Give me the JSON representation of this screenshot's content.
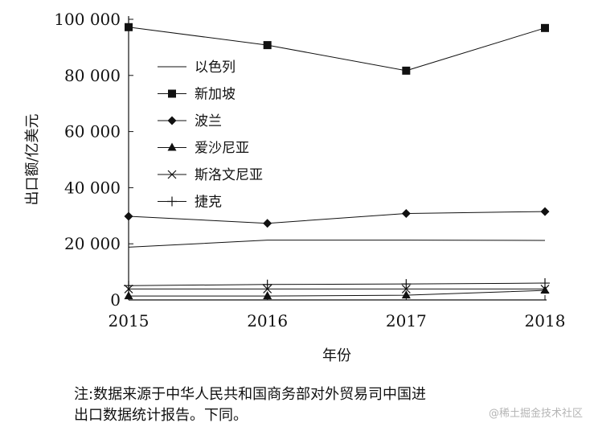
{
  "chart_data": {
    "type": "line",
    "title": "",
    "xlabel": "年份",
    "ylabel": "出口额/亿美元",
    "x": [
      2015,
      2016,
      2017,
      2018
    ],
    "x_tick_labels": [
      "2015",
      "2016",
      "2017",
      "2018"
    ],
    "ylim": [
      0,
      100000
    ],
    "y_tick_labels": [
      "0",
      "20 000",
      "40 000",
      "60 000",
      "80 000",
      "100 000"
    ],
    "legend_position": "top-left",
    "grid": false,
    "series": [
      {
        "name": "以色列",
        "marker": "none",
        "values": [
          18800,
          21300,
          21300,
          21200
        ]
      },
      {
        "name": "新加坡",
        "marker": "square",
        "values": [
          97200,
          90800,
          81700,
          96900
        ]
      },
      {
        "name": "波兰",
        "marker": "diamond",
        "values": [
          29800,
          27300,
          30800,
          31500
        ]
      },
      {
        "name": "爱沙尼亚",
        "marker": "triangle",
        "values": [
          1400,
          1400,
          1700,
          3400
        ]
      },
      {
        "name": "斯洛文尼亚",
        "marker": "x",
        "values": [
          3900,
          3900,
          3900,
          3900
        ]
      },
      {
        "name": "捷克",
        "marker": "plus",
        "values": [
          5100,
          5500,
          5700,
          6000
        ]
      }
    ]
  },
  "note": {
    "line1": "注:数据来源于中华人民共和国商务部对外贸易司中国进",
    "line2": "出口数据统计报告。下同。"
  },
  "watermark": "@稀土掘金技术社区"
}
